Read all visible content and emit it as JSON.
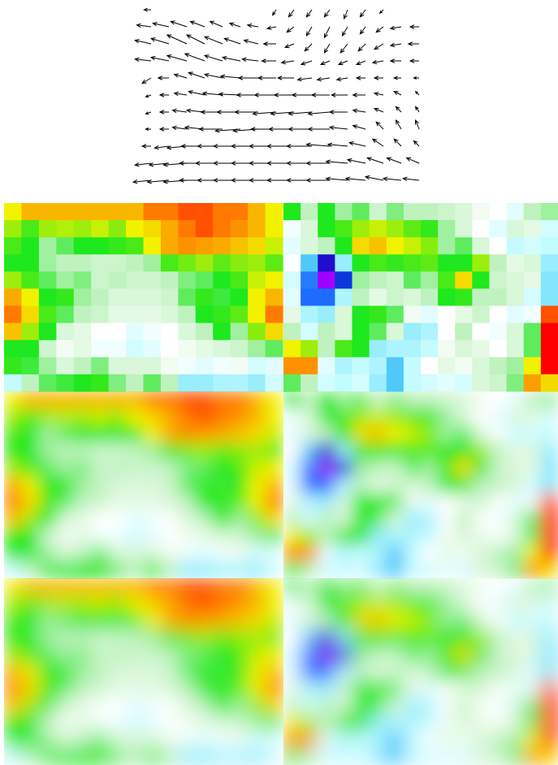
{
  "chart_data": [
    {
      "type": "quiver",
      "color": "#000000",
      "u": [
        [
          -0.4,
          0,
          0,
          0,
          0,
          0,
          0,
          -0.2,
          -0.3,
          -0.3,
          -0.3,
          -0.2,
          -0.3,
          -0.2,
          0,
          0
        ],
        [
          -0.8,
          -0.9,
          -0.9,
          -0.8,
          -0.7,
          -0.6,
          -0.6,
          -0.5,
          -0.4,
          -0.3,
          -0.3,
          -0.3,
          -0.3,
          -0.4,
          -0.6,
          -0.5
        ],
        [
          -0.9,
          -1,
          -1.1,
          -1,
          -1,
          -0.9,
          -0.8,
          -0.7,
          -0.5,
          -0.4,
          -0.3,
          -0.4,
          -0.4,
          -0.5,
          -0.6,
          -0.6
        ],
        [
          -0.9,
          -1,
          -1.1,
          -1.1,
          -1,
          -1,
          -0.9,
          -0.8,
          -0.7,
          -0.6,
          -0.5,
          -0.5,
          -0.5,
          -0.6,
          -0.6,
          -0.5
        ],
        [
          -0.5,
          -0.6,
          -0.7,
          -0.9,
          -1,
          -1.1,
          -1.1,
          -1,
          -0.9,
          -0.8,
          -0.7,
          -0.6,
          -0.5,
          -0.5,
          -0.4,
          -0.3
        ],
        [
          -0.3,
          -0.5,
          -0.7,
          -0.9,
          -1.1,
          -1.2,
          -1.2,
          -1.2,
          -1.1,
          -1.1,
          -1,
          -0.9,
          -0.7,
          -0.5,
          -0.4,
          -0.2
        ],
        [
          -0.3,
          -0.5,
          -0.8,
          -1,
          -1.2,
          -1.3,
          -1.3,
          -1.3,
          -1.3,
          -1.3,
          -1.2,
          -1,
          -0.7,
          -0.5,
          -0.3,
          -0.2
        ],
        [
          -0.3,
          -0.5,
          -0.8,
          -1.1,
          -1.3,
          -1.4,
          -1.4,
          -1.4,
          -1.4,
          -1.3,
          -1.2,
          -1,
          -0.7,
          -0.4,
          -0.3,
          -0.2
        ],
        [
          -0.5,
          -0.8,
          -1.1,
          -1.3,
          -1.4,
          -1.5,
          -1.5,
          -1.5,
          -1.5,
          -1.4,
          -1.3,
          -1.1,
          -0.9,
          -0.6,
          -0.4,
          -0.3
        ],
        [
          -0.9,
          -1.1,
          -1.3,
          -1.4,
          -1.5,
          -1.5,
          -1.5,
          -1.5,
          -1.5,
          -1.4,
          -1.3,
          -1.2,
          -1,
          -0.9,
          -0.8,
          -0.7
        ],
        [
          -1,
          -1.2,
          -1.3,
          -1.4,
          -1.4,
          -1.5,
          -1.5,
          -1.5,
          -1.5,
          -1.4,
          -1.3,
          -1.2,
          -1.1,
          -1,
          -1,
          -0.9
        ]
      ],
      "v": [
        [
          0,
          0,
          0,
          0,
          0,
          0,
          0,
          -0.3,
          -0.4,
          -0.4,
          -0.4,
          -0.5,
          -0.4,
          -0.2,
          0,
          0
        ],
        [
          0.1,
          0.2,
          0.3,
          0.3,
          0.3,
          0.2,
          0.1,
          -0.1,
          -0.3,
          -0.5,
          -0.6,
          -0.5,
          -0.4,
          -0.3,
          -0.1,
          0
        ],
        [
          0.2,
          0.3,
          0.5,
          0.5,
          0.4,
          0.3,
          0.2,
          0,
          -0.2,
          -0.4,
          -0.5,
          -0.5,
          -0.4,
          -0.3,
          -0.1,
          0
        ],
        [
          0.1,
          0.2,
          0.3,
          0.4,
          0.3,
          0.2,
          0.1,
          0,
          -0.1,
          -0.2,
          -0.2,
          -0.2,
          -0.2,
          -0.1,
          0,
          0
        ],
        [
          -0.3,
          0,
          0.2,
          0.3,
          0.2,
          0.1,
          0,
          0,
          0,
          -0.1,
          -0.1,
          -0.1,
          0,
          0,
          0,
          0
        ],
        [
          -0.1,
          0,
          0.1,
          0.2,
          0.1,
          0.05,
          0,
          0,
          0,
          0,
          0,
          0,
          0,
          0.1,
          0.2,
          0.2
        ],
        [
          -0.1,
          0,
          0.1,
          0.1,
          0,
          0,
          0,
          -0.1,
          -0.1,
          -0.1,
          -0.1,
          0,
          0.1,
          0.2,
          0.3,
          0.3
        ],
        [
          0,
          0,
          0.1,
          0.1,
          0,
          -0.1,
          -0.1,
          0,
          0,
          0,
          0,
          0.1,
          0.2,
          0.4,
          0.5,
          0.5
        ],
        [
          0,
          -0.1,
          -0.1,
          0,
          0,
          0,
          0,
          0,
          0,
          0,
          0.1,
          0.1,
          0.2,
          0.4,
          0.4,
          0.3
        ],
        [
          -0.1,
          -0.1,
          -0.1,
          0,
          0,
          0,
          0,
          0,
          0,
          0,
          0,
          0.1,
          0.2,
          0.3,
          0.3,
          0.3
        ],
        [
          -0.1,
          -0.1,
          -0.1,
          0,
          0,
          0,
          0,
          0,
          0,
          0,
          0,
          0.1,
          0.1,
          0.2,
          0.1,
          0.1
        ]
      ]
    },
    {
      "type": "heatmap",
      "interpolation": [
        "nearest",
        "bilinear",
        "bicubic"
      ],
      "colormap": {
        "values": [
          -2.8,
          -2.3,
          -1.6,
          -0.9,
          -0.4,
          0,
          0.5,
          1,
          2,
          3,
          3.6
        ],
        "colors": [
          "#a000ff",
          "#0010c0",
          "#1e6cff",
          "#58d8f8",
          "#c4fbff",
          "#ffffff",
          "#bff2bf",
          "#1ee81e",
          "#f2f200",
          "#ff7a00",
          "#ff0000"
        ]
      },
      "values": [
        [
          2,
          2.5,
          2.5,
          2.5,
          2.5,
          2.5,
          2.5,
          2.5,
          3,
          3,
          3.2,
          3.2,
          3,
          3,
          2.5,
          2
        ],
        [
          1.6,
          1.2,
          1.6,
          1.7,
          1.6,
          1.8,
          1.5,
          2,
          2.2,
          2.6,
          3,
          3.2,
          3,
          2.8,
          2.5,
          2
        ],
        [
          1.2,
          1,
          0.6,
          0.8,
          1,
          1,
          1.1,
          1.2,
          2,
          2.6,
          2.8,
          2.7,
          2.6,
          2.4,
          2.2,
          1.8
        ],
        [
          1,
          1,
          0.6,
          0.5,
          0.5,
          0.4,
          0.4,
          0.5,
          0.6,
          1.2,
          1.4,
          1.6,
          1.3,
          1.5,
          1.6,
          1.3
        ],
        [
          1.6,
          1.2,
          0.8,
          0.6,
          0.7,
          0.4,
          0.5,
          0.4,
          0.4,
          0.5,
          0.7,
          0.8,
          1,
          1.2,
          1.8,
          2
        ],
        [
          2.6,
          2,
          1,
          1.1,
          0.6,
          0.5,
          0.3,
          0.3,
          0.3,
          0.4,
          0.8,
          1.1,
          0.9,
          1,
          2,
          2.5
        ],
        [
          3,
          2.2,
          1.2,
          0.8,
          0.5,
          0.4,
          0.2,
          0.2,
          0.2,
          0.3,
          0.5,
          1,
          1.1,
          1.3,
          2,
          3
        ],
        [
          2.4,
          1.6,
          1,
          0.3,
          0.2,
          0,
          0,
          -0.2,
          -0.1,
          0,
          0.3,
          0.5,
          1,
          0.6,
          1.5,
          2.2
        ],
        [
          1,
          1,
          0.4,
          0.1,
          0.2,
          -0.1,
          -0.1,
          -0.3,
          -0.2,
          0,
          0.1,
          0.2,
          0.3,
          0.4,
          0.6,
          0.8
        ],
        [
          1.1,
          0.9,
          0.6,
          0.3,
          0.5,
          0.7,
          0.3,
          0.3,
          0.3,
          0.1,
          -0.1,
          -0.2,
          -0.1,
          0.1,
          -0.3,
          -0.2
        ],
        [
          -0.4,
          0.5,
          0.8,
          0.9,
          1,
          1.1,
          0.7,
          0.5,
          0.8,
          0.5,
          -0.6,
          -0.6,
          -0.5,
          -0.5,
          -0.6,
          -0.3
        ]
      ]
    },
    {
      "type": "heatmap",
      "interpolation": [
        "nearest",
        "bilinear",
        "bicubic"
      ],
      "colormap": {
        "values": [
          -2.8,
          -2.3,
          -1.6,
          -0.9,
          -0.4,
          0,
          0.5,
          1,
          2,
          3,
          3.6
        ],
        "colors": [
          "#a000ff",
          "#0010c0",
          "#1e6cff",
          "#58d8f8",
          "#c4fbff",
          "#ffffff",
          "#bff2bf",
          "#1ee81e",
          "#f2f200",
          "#ff7a00",
          "#ff0000"
        ]
      },
      "values": [
        [
          1,
          0.5,
          1,
          0.6,
          0.8,
          0.4,
          0.7,
          0.5,
          0.5,
          0.4,
          0.3,
          0.1,
          0,
          -0.2,
          0.5,
          0.6
        ],
        [
          -0.1,
          0.3,
          1,
          1.2,
          1.6,
          1.8,
          1.6,
          1.3,
          1.1,
          0.6,
          0.3,
          0,
          -0.2,
          0.3,
          0.2,
          -0.3
        ],
        [
          -0.2,
          0.3,
          0.5,
          1,
          2.2,
          2.4,
          2,
          1.8,
          1.5,
          0.6,
          0.8,
          0.3,
          0,
          -0.4,
          -0.3,
          -0.4
        ],
        [
          0,
          -1,
          -2.4,
          -0.6,
          1,
          1.2,
          1.1,
          1.2,
          1.3,
          1,
          1,
          1.6,
          0.5,
          0.2,
          0.3,
          -0.6
        ],
        [
          -0.3,
          -1.5,
          -2.8,
          -2,
          0.6,
          0.5,
          0.4,
          0.8,
          0.6,
          1.2,
          2.2,
          1,
          0.4,
          0.3,
          0.2,
          -0.7
        ],
        [
          -0.2,
          -1.6,
          -1.6,
          -0.5,
          0.5,
          0.2,
          0.4,
          0.3,
          0.5,
          1,
          1.1,
          0.5,
          0.5,
          0.3,
          -0.3,
          -0.7
        ],
        [
          0.2,
          -0.5,
          -0.6,
          0.3,
          1,
          1.1,
          0.8,
          0.1,
          -0.2,
          0,
          0.2,
          0.4,
          0,
          -0.2,
          -0.1,
          3.2
        ],
        [
          0.5,
          -0.3,
          0.5,
          0.3,
          1,
          0.8,
          0.3,
          -0.6,
          -0.5,
          0,
          0.5,
          0,
          -0.1,
          0.3,
          0.8,
          3.6
        ],
        [
          2,
          1.6,
          0.5,
          1.2,
          1,
          -0.6,
          -0.5,
          -0.5,
          -0.4,
          0.1,
          0.3,
          0.2,
          0,
          0.3,
          0.8,
          3.6
        ],
        [
          2.8,
          2.8,
          -0.2,
          -0.5,
          -0.4,
          -0.5,
          -1,
          -0.4,
          0,
          0.2,
          0.1,
          0.3,
          0.5,
          0.6,
          2,
          3.6
        ],
        [
          0.8,
          0.5,
          -0.3,
          -0.4,
          -0.3,
          -0.6,
          -1,
          -0.4,
          -0.3,
          -0.2,
          -0.3,
          0.3,
          0.4,
          0.7,
          2.7,
          2.2
        ]
      ]
    }
  ]
}
